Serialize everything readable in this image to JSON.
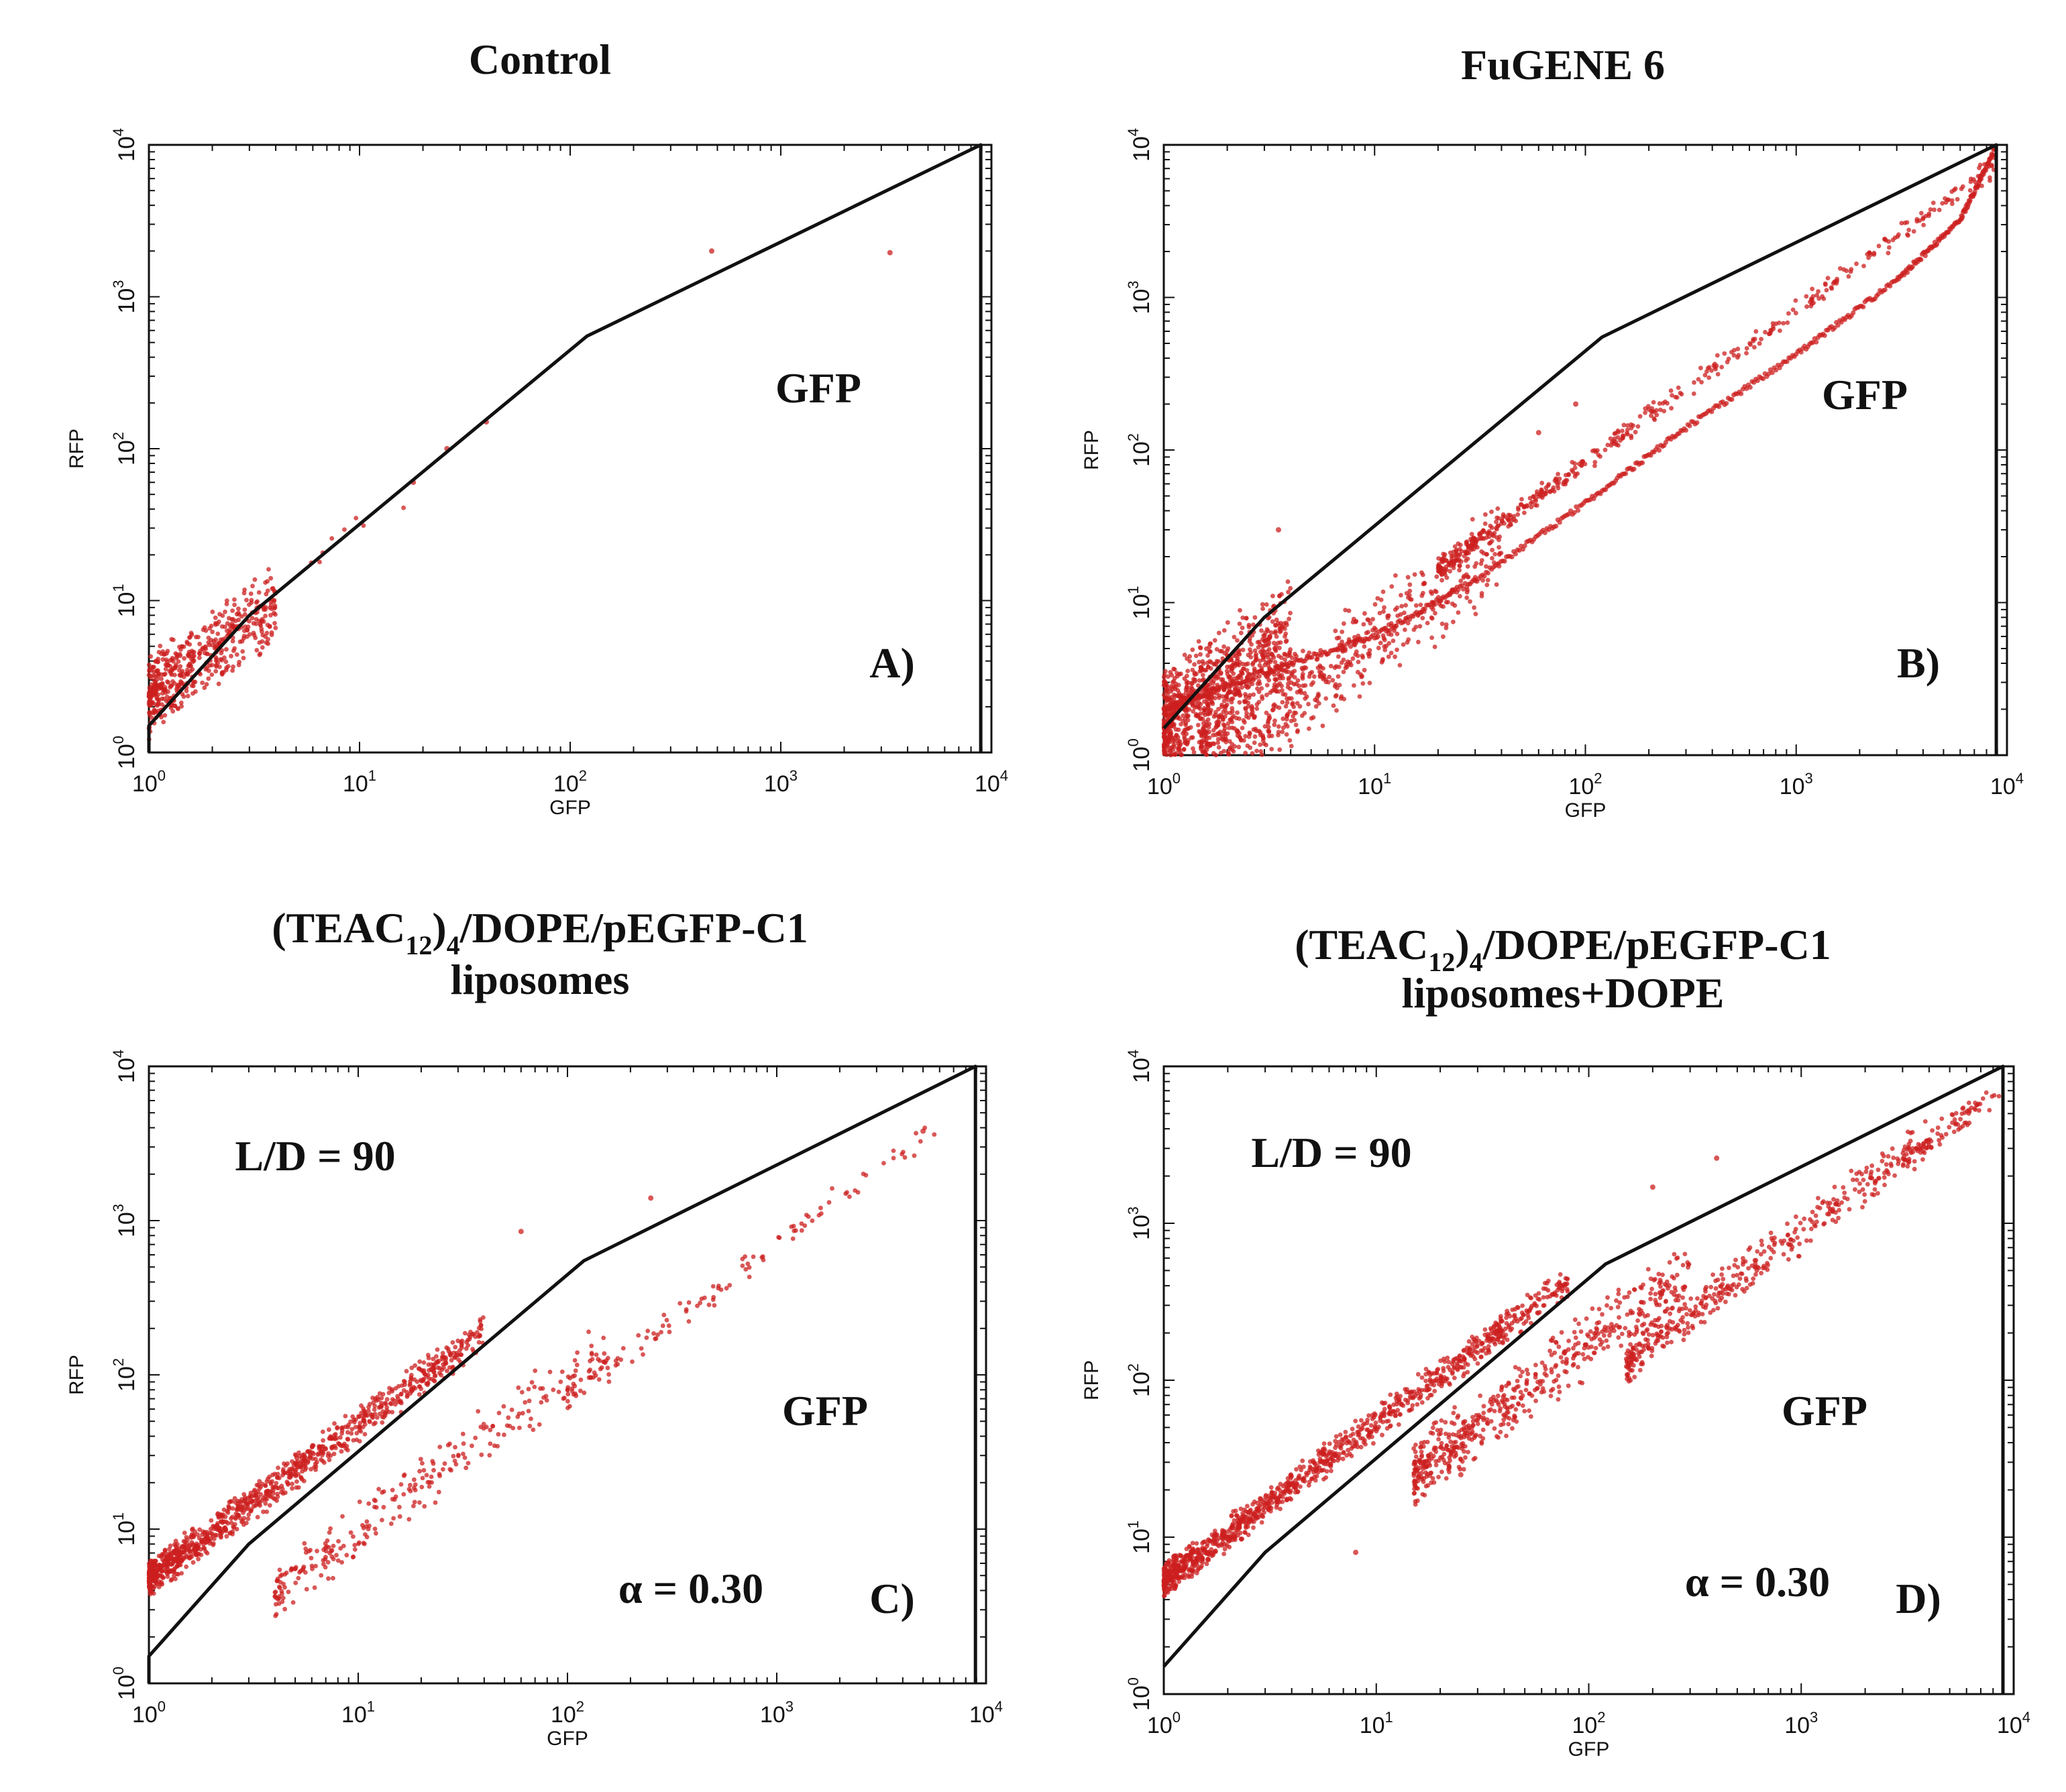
{
  "chart_data": [
    {
      "type": "scatter",
      "panel_label": "A)",
      "title": "Control",
      "xlabel": "GFP",
      "ylabel": "RFP",
      "xscale": "log",
      "yscale": "log",
      "xlim": [
        1,
        10000
      ],
      "ylim": [
        1,
        10000
      ],
      "tick_labels": [
        "10^0",
        "10^1",
        "10^2",
        "10^3",
        "10^4"
      ],
      "region_label": "GFP",
      "gate": [
        [
          1,
          1
        ],
        [
          1,
          1.5
        ],
        [
          3,
          8
        ],
        [
          120,
          550
        ],
        [
          8900,
          10000
        ],
        [
          8900,
          1
        ]
      ],
      "point_color": "#cc1f1f",
      "clusters": [
        {
          "x_range": [
            1,
            4
          ],
          "rfp_over_gfp": [
            1.2,
            4.5
          ],
          "count": 520
        },
        {
          "x_range": [
            3,
            20
          ],
          "rfp_over_gfp": [
            2,
            4
          ],
          "count": 12
        }
      ],
      "points": [
        [
          470,
          2000
        ],
        [
          3300,
          1950
        ],
        [
          40,
          150
        ],
        [
          26,
          100
        ],
        [
          18,
          60
        ]
      ]
    },
    {
      "type": "scatter",
      "panel_label": "B)",
      "title": "FuGENE 6",
      "xlabel": "GFP",
      "ylabel": "RFP",
      "xscale": "log",
      "yscale": "log",
      "xlim": [
        1,
        10000
      ],
      "ylim": [
        1,
        10000
      ],
      "tick_labels": [
        "10^0",
        "10^1",
        "10^2",
        "10^3",
        "10^4"
      ],
      "region_label": "GFP",
      "gate": [
        [
          1,
          1.5
        ],
        [
          3,
          8
        ],
        [
          120,
          550
        ],
        [
          8900,
          10000
        ],
        [
          8900,
          1
        ]
      ],
      "point_color": "#cc1f1f",
      "clusters": [
        {
          "x_range": [
            1,
            4
          ],
          "rfp_over_gfp": [
            0.6,
            4
          ],
          "count": 900
        },
        {
          "x_range": [
            1.5,
            40
          ],
          "rfp_over_gfp": [
            0.25,
            1.3
          ],
          "count": 700
        },
        {
          "x_range": [
            20,
            9000
          ],
          "rfp_over_gfp": [
            0.7,
            1.0
          ],
          "count": 450
        }
      ],
      "curve": [
        [
          1,
          2
        ],
        [
          3,
          3.5
        ],
        [
          10,
          6
        ],
        [
          30,
          14
        ],
        [
          100,
          45
        ],
        [
          300,
          140
        ],
        [
          1000,
          420
        ],
        [
          3000,
          1300
        ],
        [
          6000,
          3200
        ],
        [
          8800,
          9500
        ]
      ],
      "points": [
        [
          90,
          200
        ],
        [
          60,
          130
        ],
        [
          3.5,
          30
        ]
      ]
    },
    {
      "type": "scatter",
      "panel_label": "C)",
      "title": [
        "(TEAC",
        "12",
        ")",
        "4",
        "/DOPE/pEGFP-C1",
        "liposomes"
      ],
      "xlabel": "GFP",
      "ylabel": "RFP",
      "xscale": "log",
      "yscale": "log",
      "xlim": [
        1,
        10000
      ],
      "ylim": [
        1,
        10000
      ],
      "tick_labels": [
        "10^0",
        "10^1",
        "10^2",
        "10^3",
        "10^4"
      ],
      "region_label": "GFP",
      "annotations": [
        "L/D = 90",
        "α = 0.30"
      ],
      "gate": [
        [
          1,
          1
        ],
        [
          1,
          1.5
        ],
        [
          3,
          8
        ],
        [
          120,
          550
        ],
        [
          8900,
          10000
        ],
        [
          8900,
          1
        ]
      ],
      "point_color": "#cc1f1f",
      "clusters": [
        {
          "x_range": [
            1,
            40
          ],
          "rfp_over_gfp": [
            3.5,
            6.5
          ],
          "count": 1000
        },
        {
          "x_range": [
            4,
            150
          ],
          "rfp_over_gfp": [
            0.6,
            1.6
          ],
          "count": 260
        },
        {
          "x_range": [
            100,
            6000
          ],
          "rfp_over_gfp": [
            0.55,
            0.9
          ],
          "count": 120
        }
      ],
      "points": [
        [
          5000,
          3800
        ],
        [
          250,
          1400
        ],
        [
          60,
          850
        ]
      ]
    },
    {
      "type": "scatter",
      "panel_label": "D)",
      "title": [
        "(TEAC",
        "12",
        ")",
        "4",
        "/DOPE/pEGFP-C1",
        "liposomes+DOPE"
      ],
      "xlabel": "GFP",
      "ylabel": "RFP",
      "xscale": "log",
      "yscale": "log",
      "xlim": [
        1,
        10000
      ],
      "ylim": [
        1,
        10000
      ],
      "tick_labels": [
        "10^0",
        "10^1",
        "10^2",
        "10^3",
        "10^4"
      ],
      "region_label": "GFP",
      "annotations": [
        "L/D = 90",
        "α = 0.30"
      ],
      "gate": [
        [
          1,
          1.5
        ],
        [
          3,
          8
        ],
        [
          120,
          550
        ],
        [
          8900,
          10000
        ],
        [
          8900,
          1
        ]
      ],
      "point_color": "#cc1f1f",
      "clusters": [
        {
          "x_range": [
            1,
            80
          ],
          "rfp_over_gfp": [
            4,
            7
          ],
          "count": 1100
        },
        {
          "x_range": [
            15,
            300
          ],
          "rfp_over_gfp": [
            1,
            3
          ],
          "count": 550
        },
        {
          "x_range": [
            150,
            4000
          ],
          "rfp_over_gfp": [
            0.6,
            1.3
          ],
          "count": 400
        },
        {
          "x_range": [
            3000,
            8800
          ],
          "rfp_over_gfp": [
            0.65,
            1.05
          ],
          "count": 90
        }
      ],
      "points": [
        [
          400,
          2600
        ],
        [
          200,
          1700
        ],
        [
          8,
          8
        ],
        [
          25,
          25
        ]
      ]
    }
  ]
}
